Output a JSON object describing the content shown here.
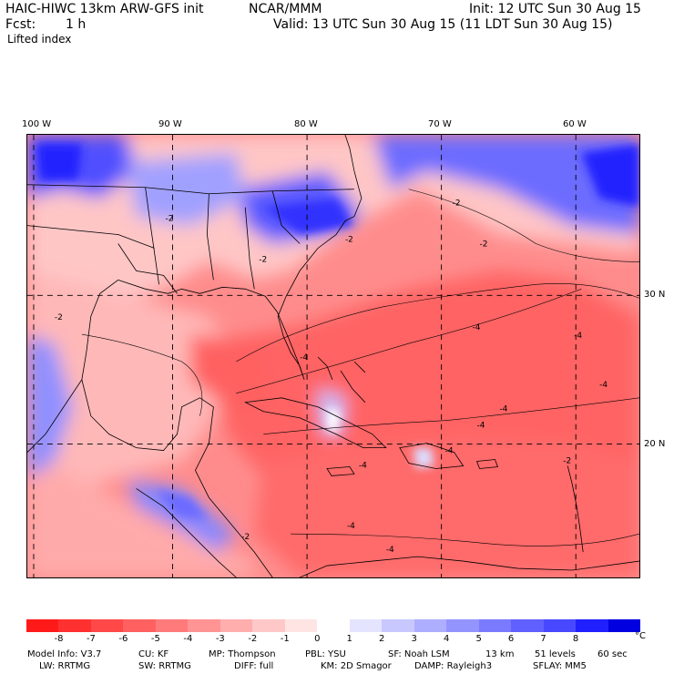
{
  "header": {
    "model_line": "HAIC-HIWC 13km ARW-GFS init",
    "org": "NCAR/MMM",
    "init": "Init: 12 UTC Sun 30 Aug 15",
    "fcst_label": "Fcst:",
    "fcst_value": "1 h",
    "valid": "Valid: 13 UTC Sun 30 Aug 15 (11 LDT Sun 30 Aug 15)",
    "field": "Lifted index"
  },
  "map": {
    "lon_labels": [
      "100 W",
      "90 W",
      "80 W",
      "70 W",
      "60 W"
    ],
    "lat_labels": [
      "30 N",
      "20 N"
    ],
    "contour_labels": [
      "-2",
      "-2",
      "-2",
      "-2",
      "-2",
      "-2",
      "-2",
      "-4",
      "-4",
      "-4",
      "-4",
      "-4",
      "-4",
      "-4",
      "-4",
      "-4",
      "-4",
      "-2"
    ]
  },
  "colorbar": {
    "ticks": [
      "-8",
      "-7",
      "-6",
      "-5",
      "-4",
      "-3",
      "-2",
      "-1",
      "0",
      "1",
      "2",
      "3",
      "4",
      "5",
      "6",
      "7",
      "8"
    ],
    "unit": "°C",
    "colors": [
      "#ff1a1a",
      "#ff3030",
      "#ff4848",
      "#ff6060",
      "#ff7a7a",
      "#ff9494",
      "#ffaeae",
      "#ffc8c8",
      "#ffe4e4",
      "#ffffff",
      "#e4e4ff",
      "#c8c8ff",
      "#aeaeff",
      "#9494ff",
      "#7a7aff",
      "#6060ff",
      "#4848ff",
      "#2020ff",
      "#0000e0"
    ]
  },
  "footer": {
    "line1": [
      "Model Info: V3.7",
      "CU: KF",
      "MP: Thompson",
      "PBL: YSU",
      "SF: Noah LSM",
      "13 km",
      "51 levels",
      "60 sec"
    ],
    "line2": [
      "LW: RRTMG",
      "SW: RRTMG",
      "DIFF: full",
      "KM: 2D Smagor",
      "DAMP: Rayleigh3",
      "SFLAY: MM5"
    ]
  }
}
